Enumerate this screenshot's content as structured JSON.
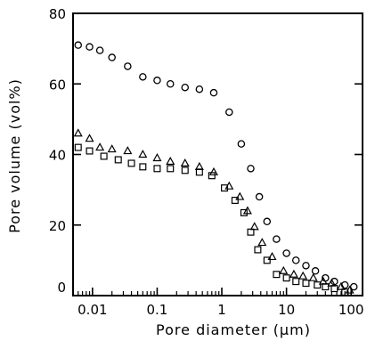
{
  "chart_data": {
    "type": "scatter",
    "title": "",
    "xlabel": "Pore diameter (μm)",
    "ylabel": "Pore volume (vol%)",
    "x_scale": "log",
    "xlim": [
      0.005,
      150
    ],
    "ylim": [
      0,
      80
    ],
    "x_ticks": [
      0.01,
      0.1,
      1,
      10,
      100
    ],
    "x_tick_labels": [
      "0.01",
      "0.1",
      "1",
      "10",
      "100"
    ],
    "y_ticks": [
      0,
      20,
      40,
      60,
      80
    ],
    "y_tick_labels": [
      "0",
      "20",
      "40",
      "60",
      "80"
    ],
    "grid": false,
    "legend": "none",
    "series": [
      {
        "marker": "circle",
        "x": [
          0.006,
          0.009,
          0.013,
          0.02,
          0.035,
          0.06,
          0.1,
          0.16,
          0.27,
          0.45,
          0.75,
          1.3,
          2,
          2.8,
          3.8,
          5,
          7,
          10,
          14,
          20,
          28,
          40,
          55,
          80,
          110
        ],
        "y": [
          71,
          70.5,
          69.5,
          67.5,
          65,
          62,
          61,
          60,
          59,
          58.5,
          57.5,
          52,
          43,
          36,
          28,
          21,
          16,
          12,
          10,
          8.5,
          7,
          5,
          4,
          3,
          2.5
        ]
      },
      {
        "marker": "triangle",
        "x": [
          0.006,
          0.009,
          0.013,
          0.02,
          0.035,
          0.06,
          0.1,
          0.16,
          0.27,
          0.45,
          0.75,
          1.3,
          1.9,
          2.5,
          3.2,
          4.2,
          6,
          9,
          13,
          18,
          26,
          37,
          50,
          70,
          95
        ],
        "y": [
          46,
          44.5,
          42,
          41.5,
          41,
          40,
          39,
          38,
          37.5,
          36.5,
          35,
          31,
          28,
          24,
          19.5,
          15,
          11,
          7,
          6,
          5.5,
          5,
          4,
          3.5,
          2.5,
          1.5
        ]
      },
      {
        "marker": "square",
        "x": [
          0.006,
          0.009,
          0.015,
          0.025,
          0.04,
          0.06,
          0.1,
          0.16,
          0.27,
          0.45,
          0.7,
          1.1,
          1.6,
          2.2,
          2.8,
          3.6,
          5,
          7,
          10,
          14,
          20,
          30,
          40,
          55,
          80
        ],
        "y": [
          42,
          41,
          39.5,
          38.5,
          37.5,
          36.5,
          36,
          36,
          35.5,
          35,
          34,
          30.5,
          27,
          23.5,
          18,
          13,
          10,
          6,
          5,
          4,
          3.5,
          3,
          2.5,
          2,
          1
        ]
      }
    ]
  }
}
